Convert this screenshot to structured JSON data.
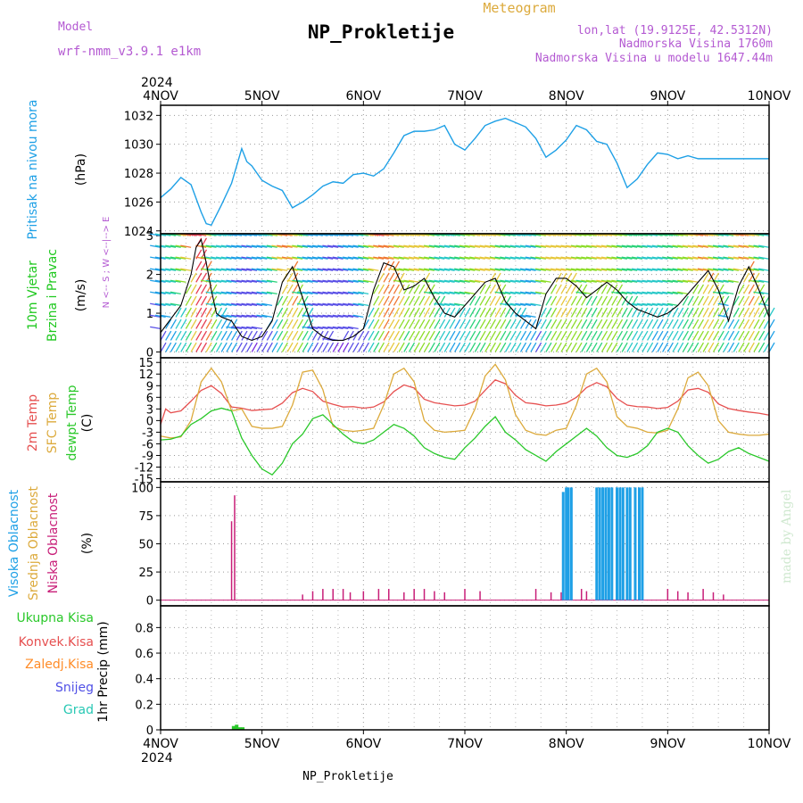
{
  "header": {
    "model_label": "Model",
    "model_value": "wrf-nmm_v3.9.1 e1km",
    "product": "Meteogram",
    "station": "NP_Prokletije",
    "lonlat": "lon,lat (19.9125E, 42.5312N)",
    "elevation": "Nadmorska Visina 1760m",
    "model_elevation": "Nadmorska Visina u modelu 1647.44m",
    "footer_station": "NP_Prokletije",
    "signature": "made by Angel"
  },
  "colors": {
    "pressure": "#1ea0e6",
    "wind_label": "#1ec81e",
    "t2m": "#e65050",
    "sfc": "#dcaa3c",
    "dewpt": "#2ac82a",
    "high_cloud": "#1ea0e6",
    "mid_cloud": "#dcaa3c",
    "low_cloud": "#c81e78",
    "total_precip": "#2ac82a",
    "conv_precip": "#e65050",
    "snow_precip": "#ff8c28",
    "snow": "#5050e6",
    "hail": "#28c8b4",
    "header_purple": "#b45ad2"
  },
  "chart_data": [
    {
      "type": "line",
      "panel": "pressure",
      "ylabel_lines": [
        "Pritisak na nivou mora"
      ],
      "units": "(hPa)",
      "ylim": [
        1023.8,
        1032.7
      ],
      "yticks": [
        1024,
        1026,
        1028,
        1030,
        1032
      ],
      "grid": true,
      "series": [
        {
          "x": [
            0,
            0.1,
            0.2,
            0.3,
            0.4,
            0.45,
            0.5,
            0.6,
            0.7,
            0.8,
            0.85,
            0.9,
            1.0,
            1.1,
            1.2,
            1.3,
            1.4,
            1.5,
            1.6,
            1.7,
            1.8,
            1.9,
            2.0,
            2.1,
            2.2,
            2.3,
            2.4,
            2.5,
            2.6,
            2.7,
            2.8,
            2.9,
            3.0,
            3.1,
            3.2,
            3.3,
            3.4,
            3.5,
            3.6,
            3.7,
            3.8,
            3.9,
            4.0,
            4.1,
            4.2,
            4.3,
            4.4,
            4.5,
            4.6,
            4.7,
            4.8,
            4.9,
            5.0,
            5.1,
            5.2,
            5.3,
            5.4,
            5.5,
            5.6,
            5.7,
            5.8,
            5.9,
            6.0
          ],
          "values": [
            1026.3,
            1026.9,
            1027.7,
            1027.2,
            1025.3,
            1024.5,
            1024.4,
            1025.8,
            1027.3,
            1029.7,
            1028.8,
            1028.5,
            1027.5,
            1027.1,
            1026.8,
            1025.6,
            1026.0,
            1026.5,
            1027.1,
            1027.4,
            1027.3,
            1027.9,
            1028.0,
            1027.8,
            1028.3,
            1029.4,
            1030.6,
            1030.9,
            1030.9,
            1031.0,
            1031.3,
            1030.0,
            1029.6,
            1030.4,
            1031.3,
            1031.6,
            1031.8,
            1031.5,
            1031.2,
            1030.4,
            1029.1,
            1029.6,
            1030.3,
            1031.3,
            1031.0,
            1030.2,
            1030.0,
            1028.7,
            1027.0,
            1027.6,
            1028.6,
            1029.4,
            1029.3,
            1029.0,
            1029.2,
            1029.0,
            1029.0,
            1029.0,
            1029.0,
            1029.0,
            1029.0,
            1029.0,
            1029.0
          ]
        }
      ]
    },
    {
      "type": "line",
      "panel": "wind",
      "ylabel_lines": [
        "10m Vjetar",
        "Brzina i Pravac"
      ],
      "units": "(m/s)",
      "compass": "N <-- S ; W <--|--> E",
      "ylim": [
        -0.15,
        3.05
      ],
      "yticks": [
        0,
        1,
        2,
        3
      ],
      "grid": true,
      "series": [
        {
          "name": "speed",
          "x": [
            0,
            0.2,
            0.3,
            0.35,
            0.4,
            0.45,
            0.5,
            0.55,
            0.6,
            0.7,
            0.8,
            0.9,
            1.0,
            1.1,
            1.2,
            1.3,
            1.4,
            1.5,
            1.6,
            1.7,
            1.8,
            1.9,
            2.0,
            2.1,
            2.2,
            2.3,
            2.4,
            2.5,
            2.6,
            2.7,
            2.8,
            2.9,
            3.0,
            3.1,
            3.2,
            3.3,
            3.4,
            3.5,
            3.6,
            3.7,
            3.8,
            3.9,
            4.0,
            4.1,
            4.2,
            4.3,
            4.4,
            4.5,
            4.6,
            4.7,
            4.8,
            4.9,
            5.0,
            5.1,
            5.2,
            5.3,
            5.4,
            5.5,
            5.6,
            5.7,
            5.8,
            5.9,
            6.0
          ],
          "values": [
            0.5,
            1.2,
            2.0,
            2.7,
            2.9,
            2.3,
            1.6,
            1.0,
            0.9,
            0.8,
            0.4,
            0.3,
            0.4,
            0.8,
            1.8,
            2.2,
            1.4,
            0.6,
            0.4,
            0.3,
            0.3,
            0.4,
            0.6,
            1.6,
            2.3,
            2.2,
            1.6,
            1.7,
            1.9,
            1.4,
            1.0,
            0.9,
            1.2,
            1.5,
            1.8,
            1.9,
            1.3,
            1.0,
            0.8,
            0.6,
            1.5,
            1.9,
            1.9,
            1.7,
            1.4,
            1.6,
            1.8,
            1.6,
            1.3,
            1.1,
            1.0,
            0.9,
            1.0,
            1.2,
            1.5,
            1.8,
            2.1,
            1.6,
            0.8,
            1.7,
            2.2,
            1.6,
            0.9
          ]
        }
      ]
    },
    {
      "type": "line",
      "panel": "temperature",
      "ylabel_lines": [
        "2m Temp",
        "SFC Temp",
        "dewpt Temp"
      ],
      "units": "(C)",
      "ylim": [
        -15.8,
        16.2
      ],
      "yticks": [
        -15,
        -12,
        -9,
        -6,
        -3,
        0,
        3,
        6,
        9,
        12,
        15
      ],
      "grid": true,
      "series": [
        {
          "name": "2m Temp",
          "x": [
            0,
            0.05,
            0.1,
            0.2,
            0.3,
            0.4,
            0.5,
            0.6,
            0.7,
            0.8,
            0.9,
            1.0,
            1.1,
            1.2,
            1.3,
            1.4,
            1.5,
            1.6,
            1.7,
            1.8,
            1.9,
            2.0,
            2.1,
            2.2,
            2.3,
            2.4,
            2.5,
            2.6,
            2.7,
            2.8,
            2.9,
            3.0,
            3.1,
            3.2,
            3.3,
            3.4,
            3.5,
            3.6,
            3.7,
            3.8,
            3.9,
            4.0,
            4.1,
            4.2,
            4.3,
            4.4,
            4.5,
            4.6,
            4.7,
            4.8,
            4.9,
            5.0,
            5.1,
            5.2,
            5.3,
            5.4,
            5.5,
            5.6,
            5.7,
            5.8,
            5.9,
            6.0
          ],
          "values": [
            -1.0,
            3.0,
            2.0,
            2.5,
            5.0,
            7.8,
            9.0,
            7.0,
            3.5,
            3.2,
            2.6,
            2.8,
            3.0,
            4.5,
            7.2,
            8.3,
            7.5,
            5.0,
            4.2,
            3.5,
            3.6,
            3.2,
            3.5,
            4.8,
            7.5,
            9.2,
            8.4,
            5.5,
            4.6,
            4.2,
            3.8,
            4.0,
            5.0,
            7.8,
            10.5,
            9.5,
            6.5,
            4.6,
            4.3,
            3.8,
            4.0,
            4.5,
            6.0,
            8.5,
            9.8,
            8.7,
            5.7,
            4.0,
            3.6,
            3.5,
            3.1,
            3.4,
            5.0,
            7.9,
            8.3,
            7.3,
            4.3,
            3.1,
            2.6,
            2.2,
            1.9,
            1.4
          ]
        },
        {
          "name": "SFC Temp",
          "x": [
            0,
            0.1,
            0.2,
            0.3,
            0.4,
            0.5,
            0.6,
            0.7,
            0.8,
            0.9,
            1.0,
            1.1,
            1.2,
            1.3,
            1.4,
            1.5,
            1.6,
            1.7,
            1.8,
            1.9,
            2.0,
            2.1,
            2.2,
            2.3,
            2.4,
            2.5,
            2.6,
            2.7,
            2.8,
            2.9,
            3.0,
            3.1,
            3.2,
            3.3,
            3.4,
            3.5,
            3.6,
            3.7,
            3.8,
            3.9,
            4.0,
            4.1,
            4.2,
            4.3,
            4.4,
            4.5,
            4.6,
            4.7,
            4.8,
            4.9,
            5.0,
            5.1,
            5.2,
            5.3,
            5.4,
            5.5,
            5.6,
            5.7,
            5.8,
            5.9,
            6.0
          ],
          "values": [
            -4.0,
            -4.5,
            -4.2,
            0.0,
            10.0,
            13.5,
            10.0,
            2.5,
            3.0,
            -1.5,
            -2.0,
            -2.0,
            -1.5,
            4.0,
            12.5,
            13.0,
            8.0,
            -1.5,
            -2.5,
            -2.8,
            -2.5,
            -2.0,
            4.0,
            12.0,
            13.5,
            10.0,
            0.0,
            -2.5,
            -3.0,
            -2.8,
            -2.5,
            3.0,
            11.5,
            14.5,
            10.5,
            1.5,
            -2.5,
            -3.5,
            -3.8,
            -2.5,
            -2.0,
            4.0,
            12.0,
            13.5,
            10.0,
            1.0,
            -1.5,
            -2.0,
            -3.0,
            -3.2,
            -2.5,
            3.0,
            11.0,
            12.5,
            9.0,
            0.0,
            -3.0,
            -3.5,
            -3.8,
            -3.8,
            -3.5
          ]
        },
        {
          "name": "dewpt Temp",
          "x": [
            0,
            0.1,
            0.2,
            0.3,
            0.4,
            0.5,
            0.6,
            0.7,
            0.8,
            0.9,
            1.0,
            1.1,
            1.2,
            1.3,
            1.4,
            1.5,
            1.6,
            1.7,
            1.8,
            1.9,
            2.0,
            2.1,
            2.2,
            2.3,
            2.4,
            2.5,
            2.6,
            2.7,
            2.8,
            2.9,
            3.0,
            3.1,
            3.2,
            3.3,
            3.4,
            3.5,
            3.6,
            3.7,
            3.8,
            3.9,
            4.0,
            4.1,
            4.2,
            4.3,
            4.4,
            4.5,
            4.6,
            4.7,
            4.8,
            4.9,
            5.0,
            5.1,
            5.2,
            5.3,
            5.4,
            5.5,
            5.6,
            5.7,
            5.8,
            5.9,
            6.0
          ],
          "values": [
            -5.0,
            -4.8,
            -4.0,
            -1.0,
            0.5,
            2.5,
            3.2,
            2.5,
            -4.5,
            -9.0,
            -12.5,
            -14.0,
            -11.0,
            -6.0,
            -3.5,
            0.5,
            1.5,
            -1.0,
            -3.5,
            -5.5,
            -6.0,
            -5.0,
            -3.0,
            -1.0,
            -2.0,
            -4.0,
            -7.0,
            -8.5,
            -9.5,
            -10.0,
            -7.0,
            -4.5,
            -1.5,
            1.0,
            -3.0,
            -5.0,
            -7.5,
            -9.0,
            -10.5,
            -8.0,
            -6.0,
            -4.0,
            -2.0,
            -4.0,
            -7.0,
            -9.0,
            -9.5,
            -8.5,
            -6.5,
            -3.0,
            -2.0,
            -3.0,
            -6.5,
            -9.0,
            -11.0,
            -10.0,
            -8.0,
            -7.0,
            -8.5,
            -9.5,
            -10.5
          ]
        }
      ]
    },
    {
      "type": "bar",
      "panel": "clouds",
      "ylabel_lines": [
        "Visoka Oblacnost",
        "Srednja Oblacnost",
        "Niska Oblacnost"
      ],
      "units": "(%)",
      "ylim": [
        -5,
        105
      ],
      "yticks": [
        0,
        25,
        50,
        75,
        100
      ],
      "grid": true,
      "series": [
        {
          "name": "Niska Oblacnost",
          "x": [
            0.7,
            0.73,
            1.4,
            1.5,
            1.6,
            1.7,
            1.8,
            1.87,
            2.0,
            2.15,
            2.25,
            2.4,
            2.5,
            2.6,
            2.7,
            2.8,
            3.0,
            3.15,
            3.7,
            3.85,
            3.95,
            4.05,
            4.15,
            4.2,
            5.0,
            5.1,
            5.2,
            5.35,
            5.45,
            5.55
          ],
          "values": [
            70,
            93,
            5,
            8,
            10,
            10,
            10,
            7,
            8,
            10,
            10,
            7,
            10,
            10,
            8,
            7,
            10,
            8,
            10,
            7,
            7,
            10,
            10,
            8,
            10,
            8,
            7,
            10,
            7,
            5
          ]
        },
        {
          "name": "Visoka Oblacnost",
          "x": [
            3.97,
            4.0,
            4.02,
            4.05,
            4.3,
            4.33,
            4.36,
            4.39,
            4.42,
            4.45,
            4.5,
            4.53,
            4.56,
            4.6,
            4.63,
            4.68,
            4.72,
            4.75
          ],
          "values": [
            96,
            100,
            100,
            100,
            100,
            100,
            100,
            100,
            100,
            100,
            100,
            100,
            100,
            100,
            100,
            100,
            100,
            100
          ]
        }
      ]
    },
    {
      "type": "bar",
      "panel": "precip",
      "legend": [
        "Ukupna Kisa",
        "Konvek.Kisa",
        "Zaledj.Kisa",
        "Snijeg",
        "Grad"
      ],
      "units": "1hr Precip (mm)",
      "ylim": [
        0,
        0.97
      ],
      "yticks": [
        0,
        0.2,
        0.4,
        0.6,
        0.8
      ],
      "grid": true,
      "series": [
        {
          "name": "Ukupna Kisa",
          "x": [
            0.72,
            0.75,
            0.78,
            0.81
          ],
          "values": [
            0.03,
            0.04,
            0.02,
            0.02
          ]
        }
      ]
    }
  ],
  "axis": {
    "day_labels": [
      "4NOV",
      "5NOV",
      "6NOV",
      "7NOV",
      "8NOV",
      "9NOV",
      "10NOV"
    ],
    "year": "2024"
  }
}
